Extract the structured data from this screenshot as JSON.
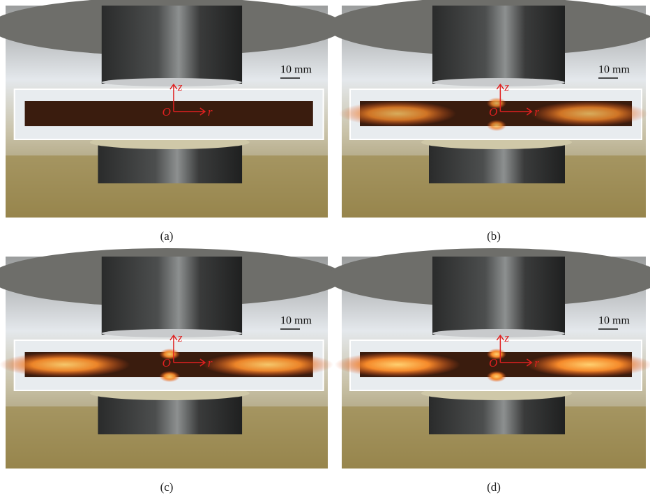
{
  "panels": [
    {
      "label": "(a)",
      "scale": "10 mm",
      "axes": {
        "origin": "O",
        "z": "z",
        "r": "r"
      }
    },
    {
      "label": "(b)",
      "scale": "10 mm",
      "axes": {
        "origin": "O",
        "z": "z",
        "r": "r"
      }
    },
    {
      "label": "(c)",
      "scale": "10 mm",
      "axes": {
        "origin": "O",
        "z": "z",
        "r": "r"
      }
    },
    {
      "label": "(d)",
      "scale": "10 mm",
      "axes": {
        "origin": "O",
        "z": "z",
        "r": "r"
      }
    }
  ]
}
